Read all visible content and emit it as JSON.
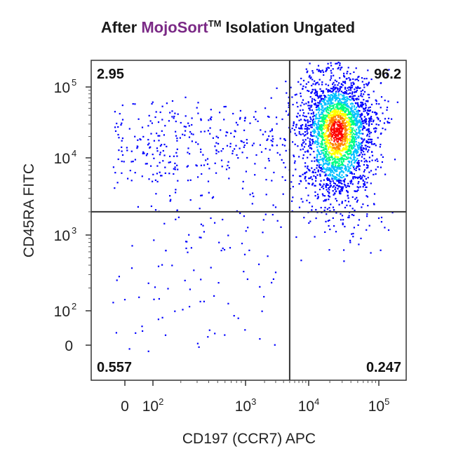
{
  "title": {
    "prefix": "After ",
    "brand": "MojoSort",
    "trademark": "TM",
    "suffix": " Isolation Ungated"
  },
  "chart_data": {
    "type": "scatter",
    "title": "After MojoSort™ Isolation Ungated",
    "xlabel": "CD197 (CCR7) APC",
    "ylabel": "CD45RA FITC",
    "x_scale": "biexponential",
    "y_scale": "biexponential",
    "x_ticks": [
      {
        "base": "0",
        "exp": ""
      },
      {
        "base": "10",
        "exp": "2"
      },
      {
        "base": "10",
        "exp": "3"
      },
      {
        "base": "10",
        "exp": "4"
      },
      {
        "base": "10",
        "exp": "5"
      }
    ],
    "y_ticks": [
      {
        "base": "0",
        "exp": ""
      },
      {
        "base": "10",
        "exp": "2"
      },
      {
        "base": "10",
        "exp": "3"
      },
      {
        "base": "10",
        "exp": "4"
      },
      {
        "base": "10",
        "exp": "5"
      }
    ],
    "gate_x": 5000,
    "gate_y": 2000,
    "quadrants": {
      "upper_left": "2.95",
      "upper_right": "96.2",
      "lower_left": "0.557",
      "lower_right": "0.247"
    },
    "main_population_center": {
      "x": 25000,
      "y": 25000
    },
    "density_colors": [
      "#0000ff",
      "#00c0ff",
      "#00ff80",
      "#ffff00",
      "#ff8000",
      "#ff0000"
    ]
  }
}
